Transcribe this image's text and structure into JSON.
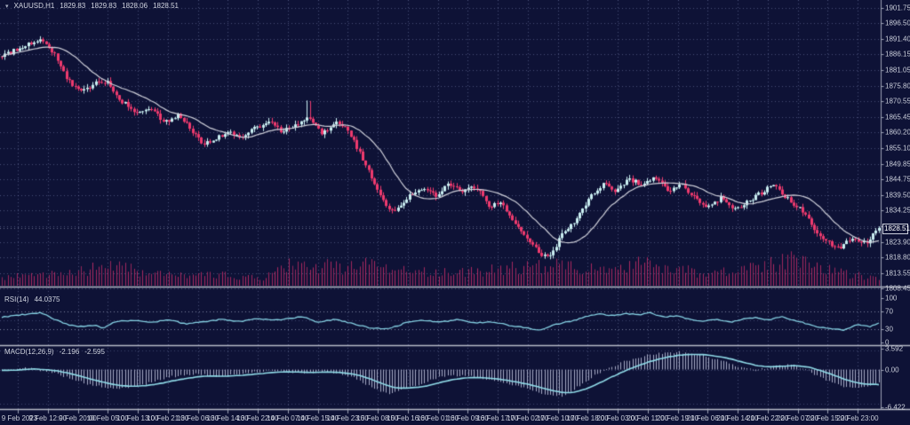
{
  "window": {
    "symbol_tf": "XAUUSD,H1",
    "open": "1829.83",
    "high": "1829.83",
    "low": "1828.06",
    "close": "1828.51"
  },
  "colors": {
    "background": "#0e1236",
    "grid": "#7d89b4",
    "bull_candle": "#c9eef1",
    "bear_candle": "#ee3a6e",
    "ma_line": "#cfd0da",
    "volume": "#b12a62",
    "rsi_line": "#86d2e4",
    "macd_signal": "#90dbe8",
    "macd_histogram": "#c2c6de",
    "axis_text": "#c9cdd9",
    "separator": "#b6bac6"
  },
  "price_axis": {
    "labels": [
      "1901.75",
      "1896.50",
      "1891.40",
      "1886.15",
      "1881.05",
      "1875.80",
      "1870.55",
      "1865.45",
      "1860.20",
      "1855.10",
      "1849.85",
      "1844.75",
      "1839.50",
      "1834.25",
      "1823.90",
      "1818.80",
      "1813.55",
      "1808.45"
    ],
    "current": "1828.51"
  },
  "rsi_pane": {
    "name": "RSI(14)",
    "value": "44.0375",
    "axis_labels": [
      "100",
      "70",
      "30",
      "0"
    ],
    "levels": [
      70,
      30
    ]
  },
  "macd_pane": {
    "name": "MACD(12,26,9)",
    "value_main": "-2.196",
    "value_signal": "-2.595",
    "axis_labels": [
      "3.592",
      "0.00",
      "-6.422"
    ]
  },
  "time_axis": [
    "9 Feb 2023",
    "9 Feb 12:00",
    "9 Feb 20:00",
    "10 Feb 05:00",
    "10 Feb 13:00",
    "10 Feb 21:00",
    "13 Feb 06:00",
    "13 Feb 14:00",
    "13 Feb 22:00",
    "14 Feb 07:00",
    "14 Feb 15:00",
    "14 Feb 23:00",
    "15 Feb 08:00",
    "15 Feb 16:00",
    "16 Feb 01:00",
    "16 Feb 09:00",
    "16 Feb 17:00",
    "17 Feb 02:00",
    "17 Feb 10:00",
    "17 Feb 18:00",
    "20 Feb 03:00",
    "20 Feb 11:00",
    "20 Feb 19:00",
    "21 Feb 06:00",
    "21 Feb 14:00",
    "21 Feb 22:00",
    "22 Feb 07:00",
    "22 Feb 15:00",
    "22 Feb 23:00"
  ],
  "chart_data": {
    "type": "candlestick",
    "symbol": "XAUUSD",
    "timeframe": "H1",
    "title": "XAUUSD,H1 1829.83 1829.83 1828.06 1828.51",
    "last_bar": {
      "open": 1829.83,
      "high": 1829.83,
      "low": 1828.06,
      "close": 1828.51
    },
    "ylim": [
      1806.0,
      1904.5
    ],
    "price_ticks": [
      1901.75,
      1896.5,
      1891.4,
      1886.15,
      1881.05,
      1875.8,
      1870.55,
      1865.45,
      1860.2,
      1855.1,
      1849.85,
      1844.75,
      1839.5,
      1834.25,
      1829.15,
      1823.9,
      1818.8,
      1813.55,
      1808.45
    ],
    "x_tick_labels": [
      "9 Feb 2023",
      "9 Feb 12:00",
      "9 Feb 20:00",
      "10 Feb 05:00",
      "10 Feb 13:00",
      "10 Feb 21:00",
      "13 Feb 06:00",
      "13 Feb 14:00",
      "13 Feb 22:00",
      "14 Feb 07:00",
      "14 Feb 15:00",
      "14 Feb 23:00",
      "15 Feb 08:00",
      "15 Feb 16:00",
      "16 Feb 01:00",
      "16 Feb 09:00",
      "16 Feb 17:00",
      "17 Feb 02:00",
      "17 Feb 10:00",
      "17 Feb 18:00",
      "20 Feb 03:00",
      "20 Feb 11:00",
      "20 Feb 19:00",
      "21 Feb 06:00",
      "21 Feb 14:00",
      "21 Feb 22:00",
      "22 Feb 07:00",
      "22 Feb 15:00",
      "22 Feb 23:00"
    ],
    "overlays": [
      {
        "type": "moving-average",
        "color": "#cfd0da"
      }
    ],
    "close_path": [
      [
        0,
        1885.5
      ],
      [
        0.02,
        1888.2
      ],
      [
        0.045,
        1891.3
      ],
      [
        0.06,
        1886.5
      ],
      [
        0.075,
        1877.5
      ],
      [
        0.09,
        1873.5
      ],
      [
        0.105,
        1876.5
      ],
      [
        0.12,
        1877.5
      ],
      [
        0.135,
        1871
      ],
      [
        0.155,
        1866.5
      ],
      [
        0.17,
        1868.5
      ],
      [
        0.185,
        1863.5
      ],
      [
        0.2,
        1866
      ],
      [
        0.215,
        1861.5
      ],
      [
        0.23,
        1856
      ],
      [
        0.245,
        1858.5
      ],
      [
        0.26,
        1860.5
      ],
      [
        0.275,
        1858.5
      ],
      [
        0.29,
        1862
      ],
      [
        0.305,
        1864
      ],
      [
        0.32,
        1860.5
      ],
      [
        0.335,
        1863
      ],
      [
        0.35,
        1866
      ],
      [
        0.365,
        1859.5
      ],
      [
        0.38,
        1863.5
      ],
      [
        0.395,
        1861
      ],
      [
        0.41,
        1852
      ],
      [
        0.425,
        1843
      ],
      [
        0.44,
        1835.5
      ],
      [
        0.45,
        1834
      ],
      [
        0.465,
        1839.5
      ],
      [
        0.48,
        1841.5
      ],
      [
        0.495,
        1839.5
      ],
      [
        0.51,
        1843
      ],
      [
        0.525,
        1840
      ],
      [
        0.54,
        1842.5
      ],
      [
        0.555,
        1835.5
      ],
      [
        0.57,
        1837
      ],
      [
        0.585,
        1830.5
      ],
      [
        0.6,
        1825
      ],
      [
        0.615,
        1819.5
      ],
      [
        0.625,
        1818.5
      ],
      [
        0.64,
        1827
      ],
      [
        0.655,
        1831
      ],
      [
        0.67,
        1838.5
      ],
      [
        0.685,
        1843
      ],
      [
        0.7,
        1841
      ],
      [
        0.715,
        1845
      ],
      [
        0.73,
        1842.5
      ],
      [
        0.745,
        1845.5
      ],
      [
        0.76,
        1841
      ],
      [
        0.775,
        1843
      ],
      [
        0.79,
        1838.5
      ],
      [
        0.805,
        1835
      ],
      [
        0.82,
        1838.5
      ],
      [
        0.835,
        1834.5
      ],
      [
        0.85,
        1837.5
      ],
      [
        0.865,
        1840
      ],
      [
        0.88,
        1843.5
      ],
      [
        0.895,
        1838.5
      ],
      [
        0.91,
        1835
      ],
      [
        0.925,
        1829
      ],
      [
        0.94,
        1824
      ],
      [
        0.955,
        1821.5
      ],
      [
        0.97,
        1825.5
      ],
      [
        0.985,
        1823.5
      ],
      [
        1,
        1828.51
      ]
    ],
    "volume_envelope": [
      [
        0,
        22
      ],
      [
        0.04,
        30
      ],
      [
        0.09,
        40
      ],
      [
        0.13,
        48
      ],
      [
        0.17,
        30
      ],
      [
        0.21,
        24
      ],
      [
        0.25,
        26
      ],
      [
        0.3,
        22
      ],
      [
        0.335,
        62
      ],
      [
        0.36,
        50
      ],
      [
        0.4,
        45
      ],
      [
        0.43,
        58
      ],
      [
        0.46,
        42
      ],
      [
        0.5,
        32
      ],
      [
        0.54,
        36
      ],
      [
        0.58,
        46
      ],
      [
        0.62,
        52
      ],
      [
        0.66,
        44
      ],
      [
        0.7,
        40
      ],
      [
        0.73,
        56
      ],
      [
        0.76,
        46
      ],
      [
        0.8,
        32
      ],
      [
        0.84,
        36
      ],
      [
        0.87,
        52
      ],
      [
        0.9,
        64
      ],
      [
        0.93,
        48
      ],
      [
        0.96,
        32
      ],
      [
        1,
        16
      ]
    ],
    "rsi": {
      "period": 14,
      "last": 44.0375,
      "range": [
        0,
        100
      ],
      "levels": [
        70,
        30
      ],
      "path": [
        [
          0,
          57
        ],
        [
          0.02,
          62
        ],
        [
          0.045,
          67
        ],
        [
          0.06,
          52
        ],
        [
          0.075,
          40
        ],
        [
          0.09,
          36
        ],
        [
          0.105,
          39
        ],
        [
          0.115,
          33
        ],
        [
          0.13,
          47
        ],
        [
          0.15,
          50
        ],
        [
          0.17,
          45
        ],
        [
          0.19,
          51
        ],
        [
          0.21,
          42
        ],
        [
          0.23,
          46
        ],
        [
          0.25,
          52
        ],
        [
          0.27,
          47
        ],
        [
          0.29,
          54
        ],
        [
          0.31,
          50
        ],
        [
          0.33,
          55
        ],
        [
          0.345,
          58
        ],
        [
          0.36,
          46
        ],
        [
          0.38,
          52
        ],
        [
          0.4,
          42
        ],
        [
          0.42,
          33
        ],
        [
          0.44,
          30
        ],
        [
          0.46,
          44
        ],
        [
          0.48,
          50
        ],
        [
          0.5,
          46
        ],
        [
          0.52,
          52
        ],
        [
          0.54,
          44
        ],
        [
          0.56,
          47
        ],
        [
          0.58,
          38
        ],
        [
          0.6,
          32
        ],
        [
          0.615,
          28
        ],
        [
          0.63,
          40
        ],
        [
          0.65,
          48
        ],
        [
          0.665,
          58
        ],
        [
          0.68,
          64
        ],
        [
          0.7,
          60
        ],
        [
          0.71,
          66
        ],
        [
          0.725,
          62
        ],
        [
          0.74,
          67
        ],
        [
          0.755,
          57
        ],
        [
          0.77,
          60
        ],
        [
          0.785,
          52
        ],
        [
          0.8,
          47
        ],
        [
          0.815,
          53
        ],
        [
          0.83,
          46
        ],
        [
          0.845,
          52
        ],
        [
          0.86,
          56
        ],
        [
          0.875,
          51
        ],
        [
          0.89,
          58
        ],
        [
          0.9,
          52
        ],
        [
          0.915,
          44
        ],
        [
          0.93,
          36
        ],
        [
          0.945,
          31
        ],
        [
          0.96,
          28
        ],
        [
          0.975,
          40
        ],
        [
          0.99,
          35
        ],
        [
          1,
          44.04
        ]
      ]
    },
    "macd": {
      "fast": 12,
      "slow": 26,
      "signal": 9,
      "last_main": -2.196,
      "last_signal": -2.595,
      "range": [
        -6.422,
        3.592
      ],
      "zero": 0.0,
      "main_path": [
        [
          0,
          -0.2
        ],
        [
          0.03,
          0.3
        ],
        [
          0.06,
          -0.6
        ],
        [
          0.1,
          -2.6
        ],
        [
          0.13,
          -3.4
        ],
        [
          0.16,
          -2.6
        ],
        [
          0.19,
          -1.3
        ],
        [
          0.22,
          -0.7
        ],
        [
          0.25,
          -1.3
        ],
        [
          0.28,
          -0.5
        ],
        [
          0.31,
          -0.15
        ],
        [
          0.34,
          -0.6
        ],
        [
          0.37,
          -0.3
        ],
        [
          0.4,
          -1.2
        ],
        [
          0.42,
          -3.0
        ],
        [
          0.44,
          -4.1
        ],
        [
          0.47,
          -2.8
        ],
        [
          0.5,
          -1.2
        ],
        [
          0.53,
          -1.0
        ],
        [
          0.56,
          -1.9
        ],
        [
          0.59,
          -2.8
        ],
        [
          0.62,
          -4.3
        ],
        [
          0.64,
          -4.5
        ],
        [
          0.66,
          -2.6
        ],
        [
          0.68,
          -0.6
        ],
        [
          0.71,
          1.4
        ],
        [
          0.74,
          2.6
        ],
        [
          0.77,
          3.0
        ],
        [
          0.8,
          2.4
        ],
        [
          0.82,
          1.5
        ],
        [
          0.84,
          0.5
        ],
        [
          0.86,
          -0.1
        ],
        [
          0.88,
          0.5
        ],
        [
          0.9,
          0.9
        ],
        [
          0.92,
          -0.3
        ],
        [
          0.94,
          -1.8
        ],
        [
          0.96,
          -2.9
        ],
        [
          0.98,
          -3.1
        ],
        [
          1,
          -2.196
        ]
      ]
    }
  }
}
